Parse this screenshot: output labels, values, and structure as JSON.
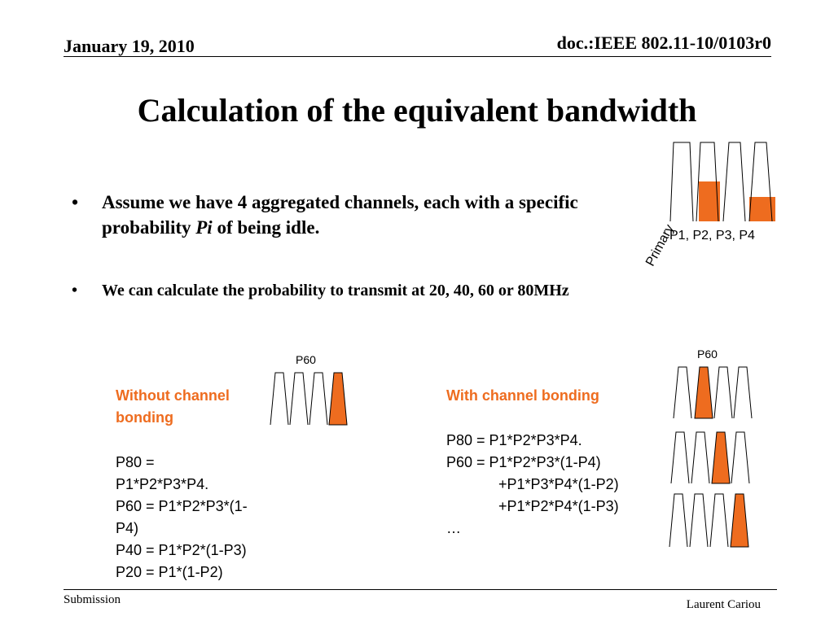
{
  "header": {
    "date": "January 19, 2010",
    "doc": "doc.:IEEE 802.11-10/0103r0"
  },
  "slide": {
    "title": "Calculation of the equivalent bandwidth",
    "bullets": [
      {
        "symbol": "•",
        "text_before": "Assume we have 4 aggregated channels, each with a specific probability ",
        "italic": "Pi",
        "text_after": " of being idle."
      },
      {
        "symbol": "•",
        "text": "We can calculate the probability to transmit at 20, 40, 60 or 80MHz"
      }
    ],
    "diagram_top": {
      "label": "P1, P2, P3, P4",
      "primary_label": "Primary",
      "idle_fill_fractions": [
        0,
        0.5,
        0,
        0.3
      ]
    },
    "left": {
      "diagram_label": "P60",
      "heading": "Without channel bonding",
      "formulas": [
        "P80 =",
        "P1*P2*P3*P4.",
        "P60 = P1*P2*P3*(1-",
        "P4)",
        "P40 = P1*P2*(1-P3)",
        "P20 = P1*(1-P2)"
      ]
    },
    "right": {
      "diagram_label": "P60",
      "heading": "With channel bonding",
      "formulas": [
        "P80 = P1*P2*P3*P4.",
        "P60 = P1*P2*P3*(1-P4)",
        "+P1*P3*P4*(1-P2)",
        "+P1*P2*P4*(1-P3)",
        "…"
      ]
    }
  },
  "footer": {
    "left": "Submission",
    "right": "Laurent Cariou"
  },
  "colors": {
    "accent": "#ee6c1f",
    "text": "#000000"
  }
}
